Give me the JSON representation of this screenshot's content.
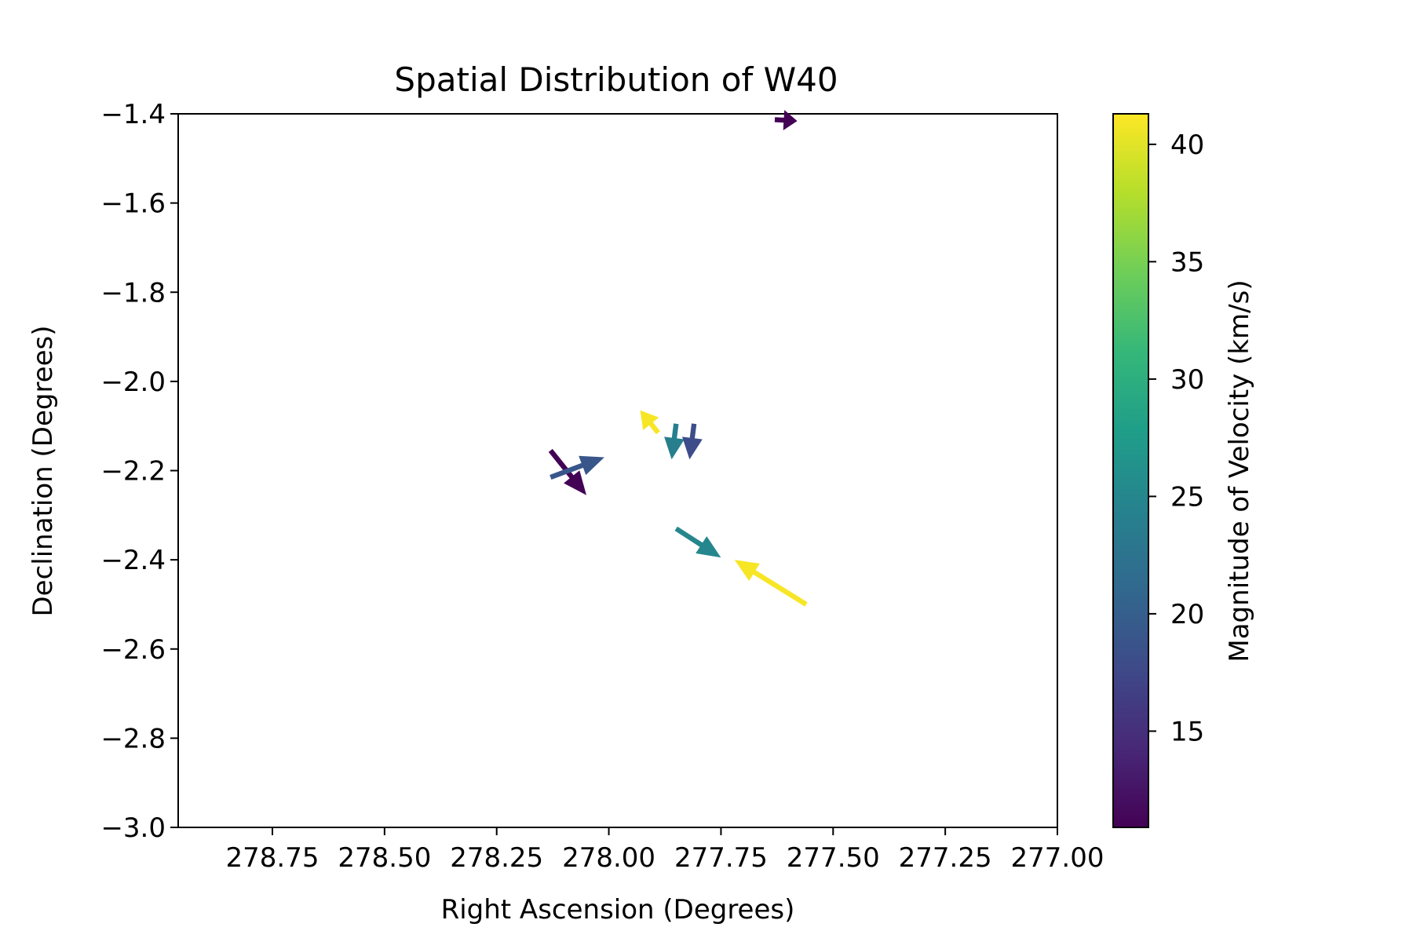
{
  "chart_data": {
    "type": "quiver",
    "title": "Spatial Distribution of W40",
    "xlabel": "Right Ascension (Degrees)",
    "ylabel": "Declination (Degrees)",
    "xlim": [
      278.96,
      277.0
    ],
    "ylim": [
      -3.0,
      -1.4
    ],
    "x_inverted": true,
    "xticks": [
      278.75,
      278.5,
      278.25,
      278.0,
      277.75,
      277.5,
      277.25,
      277.0
    ],
    "xtick_labels": [
      "278.75",
      "278.50",
      "278.25",
      "278.00",
      "277.75",
      "277.50",
      "277.25",
      "277.00"
    ],
    "yticks": [
      -1.4,
      -1.6,
      -1.8,
      -2.0,
      -2.2,
      -2.4,
      -2.6,
      -2.8,
      -3.0
    ],
    "ytick_labels": [
      "−1.4",
      "−1.6",
      "−1.8",
      "−2.0",
      "−2.2",
      "−2.4",
      "−2.6",
      "−2.8",
      "−3.0"
    ],
    "grid": false,
    "colorbar": {
      "label": "Magnitude of Velocity (km/s)",
      "cmap": "viridis",
      "range": [
        10.9,
        41.3
      ],
      "ticks": [
        15,
        20,
        25,
        30,
        35,
        40
      ],
      "tick_labels": [
        "15",
        "20",
        "25",
        "30",
        "35",
        "40"
      ]
    },
    "vectors": [
      {
        "ra": 277.63,
        "dec": -1.413,
        "dra": -0.05,
        "ddec": -0.003,
        "magnitude": 11
      },
      {
        "ra": 277.89,
        "dec": -2.115,
        "dra": 0.04,
        "ddec": 0.05,
        "magnitude": 41
      },
      {
        "ra": 277.85,
        "dec": -2.095,
        "dra": 0.01,
        "ddec": -0.08,
        "magnitude": 24
      },
      {
        "ra": 277.81,
        "dec": -2.095,
        "dra": 0.01,
        "ddec": -0.08,
        "magnitude": 18
      },
      {
        "ra": 278.13,
        "dec": -2.155,
        "dra": -0.08,
        "ddec": -0.1,
        "magnitude": 11
      },
      {
        "ra": 278.13,
        "dec": -2.215,
        "dra": -0.12,
        "ddec": 0.045,
        "magnitude": 19
      },
      {
        "ra": 277.85,
        "dec": -2.33,
        "dra": -0.1,
        "ddec": -0.065,
        "magnitude": 25
      },
      {
        "ra": 277.56,
        "dec": -2.5,
        "dra": 0.16,
        "ddec": 0.1,
        "magnitude": 41
      }
    ]
  }
}
